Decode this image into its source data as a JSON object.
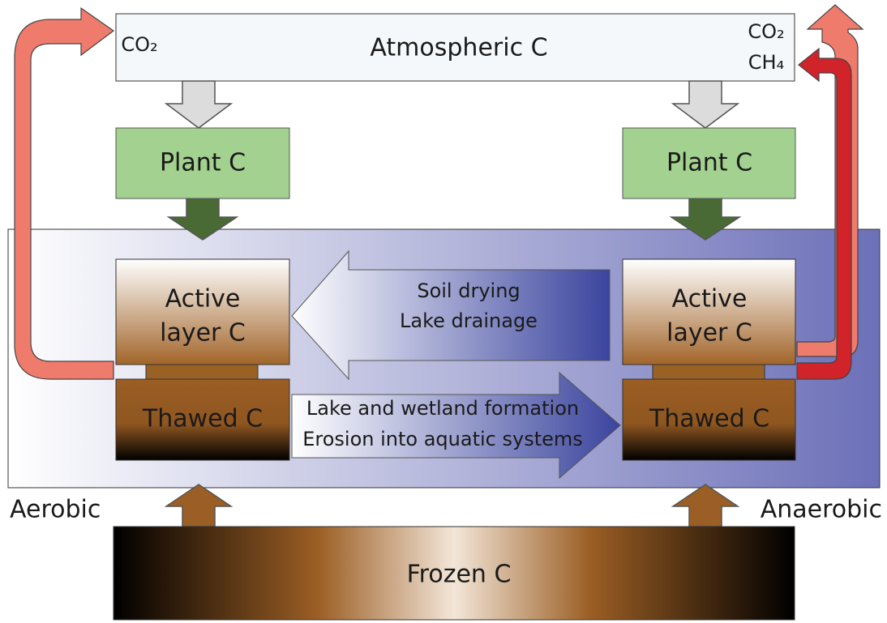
{
  "atmosphere": {
    "label": "Atmospheric C",
    "left_gas": "CO₂",
    "right_gases": [
      "CO₂",
      "CH₄"
    ]
  },
  "left": {
    "plant": "Plant C",
    "active": [
      "Active",
      "layer C"
    ],
    "thawed": "Thawed C",
    "zone": "Aerobic"
  },
  "right": {
    "plant": "Plant C",
    "active": [
      "Active",
      "layer C"
    ],
    "thawed": "Thawed C",
    "zone": "Anaerobic"
  },
  "arrows": {
    "to_aerobic": [
      "Soil drying",
      "Lake drainage"
    ],
    "to_anaerobic": [
      "Lake and wetland formation",
      "Erosion into aquatic systems"
    ]
  },
  "frozen": "Frozen C"
}
